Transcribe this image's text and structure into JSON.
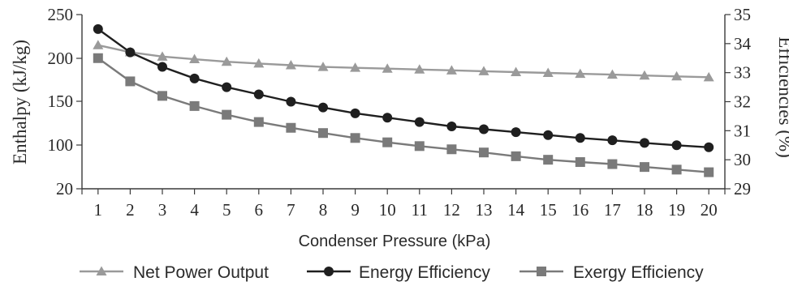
{
  "chart_data": {
    "type": "line",
    "xlabel": "Condenser Pressure (kPa)",
    "ylabel_left": "Enthalpy (kJ/kg)",
    "ylabel_right": "Efficiencies (%)",
    "x": [
      1,
      2,
      3,
      4,
      5,
      6,
      7,
      8,
      9,
      10,
      11,
      12,
      13,
      14,
      15,
      16,
      17,
      18,
      19,
      20
    ],
    "xlim": [
      0.5,
      20.5
    ],
    "left_axis": {
      "ticks": [
        20,
        100,
        150,
        200,
        250
      ],
      "scale": "categorical-breaks",
      "note_ticks_values": [
        "20",
        "100",
        "150",
        "200",
        "250"
      ]
    },
    "right_axis": {
      "ticks": [
        29,
        30,
        31,
        32,
        33,
        34,
        35
      ],
      "ylim": [
        29,
        35
      ]
    },
    "series": [
      {
        "name": "Net Power Output",
        "axis": "left",
        "marker": "triangle",
        "color": "#9a9a9a",
        "values": [
          215,
          207,
          202,
          199,
          196,
          194,
          192,
          190,
          189,
          188,
          187,
          186,
          185,
          184,
          183,
          182,
          181,
          180,
          179,
          178
        ]
      },
      {
        "name": "Energy Efficiency",
        "axis": "right",
        "marker": "circle",
        "color": "#1f1f1f",
        "values": [
          34.5,
          33.7,
          33.2,
          32.8,
          32.5,
          32.25,
          32.0,
          31.8,
          31.6,
          31.45,
          31.3,
          31.15,
          31.05,
          30.95,
          30.85,
          30.75,
          30.67,
          30.58,
          30.5,
          30.43
        ]
      },
      {
        "name": "Exergy Efficiency",
        "axis": "right",
        "marker": "square",
        "color": "#7a7a7a",
        "values": [
          33.5,
          32.7,
          32.2,
          31.85,
          31.55,
          31.3,
          31.1,
          30.92,
          30.75,
          30.6,
          30.47,
          30.36,
          30.25,
          30.12,
          30.0,
          29.92,
          29.85,
          29.75,
          29.66,
          29.57
        ]
      }
    ],
    "legend": "bottom"
  }
}
